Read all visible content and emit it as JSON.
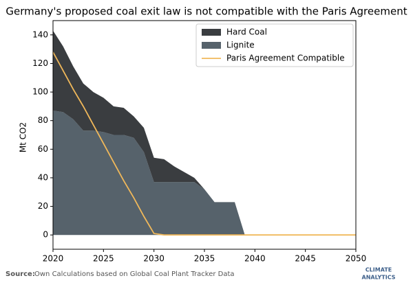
{
  "chart_data": {
    "type": "stacked_area",
    "title": "Germany's proposed coal exit law is not compatible with the Paris Agreement",
    "y_label": "Mt CO2",
    "x": [
      2020,
      2021,
      2022,
      2023,
      2024,
      2025,
      2026,
      2027,
      2028,
      2029,
      2030,
      2031,
      2032,
      2033,
      2034,
      2035,
      2036,
      2037,
      2038,
      2039,
      2040,
      2041,
      2042,
      2043,
      2044,
      2045,
      2046,
      2047,
      2048,
      2049,
      2050
    ],
    "series": [
      {
        "name": "Lignite",
        "color": "#56626b",
        "values": [
          87,
          86,
          81,
          73,
          73,
          72,
          70,
          70,
          68,
          58,
          37,
          37,
          37,
          37,
          37,
          32,
          23,
          23,
          23,
          0,
          0,
          0,
          0,
          0,
          0,
          0,
          0,
          0,
          0,
          0,
          0
        ]
      },
      {
        "name": "Hard Coal",
        "color": "#3a3d40",
        "values": [
          56,
          46,
          37,
          33,
          27,
          24,
          20,
          19,
          15,
          17,
          17,
          16,
          11,
          7,
          3,
          0,
          0,
          0,
          0,
          0,
          0,
          0,
          0,
          0,
          0,
          0,
          0,
          0,
          0,
          0,
          0
        ]
      },
      {
        "name": "Paris Agreement Compatible",
        "type": "line",
        "color": "#f0b85a",
        "values": [
          128,
          115,
          102,
          90,
          77,
          64,
          51,
          38,
          26,
          13,
          1,
          0,
          0,
          0,
          0,
          0,
          0,
          0,
          0,
          0,
          0,
          0,
          0,
          0,
          0,
          0,
          0,
          0,
          0,
          0,
          0
        ]
      }
    ],
    "xlim": [
      2020,
      2050
    ],
    "xticks": [
      2020,
      2025,
      2030,
      2035,
      2040,
      2045,
      2050
    ],
    "ylim": [
      -10,
      150
    ],
    "yticks": [
      0,
      20,
      40,
      60,
      80,
      100,
      120,
      140
    ],
    "legend": "upper right"
  },
  "footer": {
    "source_label": "Source:",
    "source_text": "Own Calculations based on Global Coal Plant Tracker Data",
    "logo_top": "CLIMATE",
    "logo_bottom": "ANALYTICS"
  }
}
